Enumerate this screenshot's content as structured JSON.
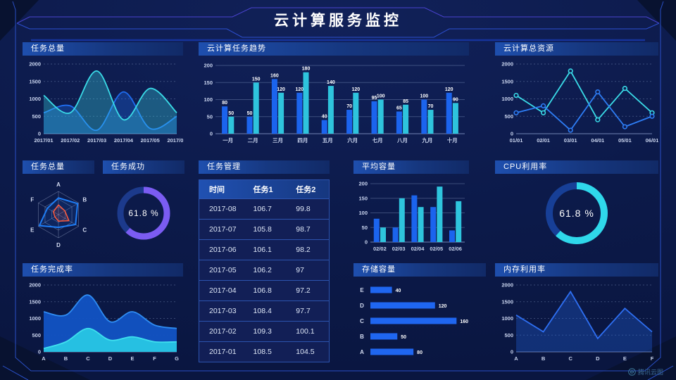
{
  "header": {
    "title": "云计算服务监控"
  },
  "footer": {
    "watermark": "腾讯云图"
  },
  "colors": {
    "background": "#0c1a4a",
    "panel_title_gradient": [
      "#1e4fae",
      "#112a67"
    ],
    "blue": "#1f66f0",
    "cyan": "#2fd3e6",
    "purple": "#7b5cf2",
    "orange": "#ff5a3c",
    "gauge_track": "#1c3a8c"
  },
  "chart_data": [
    {
      "id": "task-total-trend",
      "type": "area",
      "title": "任务总量",
      "smooth": true,
      "grid": "dashed",
      "x": [
        "2017/01",
        "2017/02",
        "2017/03",
        "2017/04",
        "2017/05",
        "2017/06"
      ],
      "ylim": [
        0,
        2000
      ],
      "yticks": [
        0,
        500,
        1000,
        1500,
        2000
      ],
      "fillOpacity": 0.32,
      "series": [
        {
          "name": "series-blue",
          "color": "#1f6df0",
          "values": [
            600,
            800,
            100,
            1200,
            150,
            500
          ]
        },
        {
          "name": "series-cyan",
          "color": "#3adce8",
          "values": [
            1100,
            600,
            1800,
            400,
            1300,
            600
          ]
        }
      ]
    },
    {
      "id": "cloud-task-trend",
      "type": "bar",
      "title": "云计算任务趋势",
      "labels": true,
      "x": [
        "一月",
        "二月",
        "三月",
        "四月",
        "五月",
        "六月",
        "七月",
        "八月",
        "九月",
        "十月"
      ],
      "ylim": [
        0,
        200
      ],
      "yticks": [
        0,
        50,
        100,
        150,
        200
      ],
      "series": [
        {
          "name": "series-blue",
          "color": "#1b64ee",
          "values": [
            80,
            50,
            160,
            120,
            40,
            70,
            95,
            65,
            100,
            120
          ]
        },
        {
          "name": "series-cyan",
          "color": "#2ec4dd",
          "values": [
            50,
            150,
            120,
            180,
            140,
            120,
            100,
            85,
            70,
            90
          ]
        }
      ]
    },
    {
      "id": "cloud-total-resources",
      "type": "line",
      "title": "云计算总资源",
      "markers": true,
      "grid": "dashed",
      "x": [
        "01/01",
        "02/01",
        "03/01",
        "04/01",
        "05/01",
        "06/01"
      ],
      "ylim": [
        0,
        2000
      ],
      "yticks": [
        0,
        500,
        1000,
        1500,
        2000
      ],
      "series": [
        {
          "name": "series-cyan",
          "color": "#3adce8",
          "values": [
            1100,
            600,
            1800,
            400,
            1300,
            600
          ]
        },
        {
          "name": "series-blue",
          "color": "#2e7df5",
          "values": [
            600,
            800,
            100,
            1200,
            200,
            500
          ]
        }
      ]
    },
    {
      "id": "task-total-radar",
      "type": "radar",
      "title": "任务总量",
      "axes": [
        "A",
        "B",
        "C",
        "D",
        "E",
        "F"
      ],
      "max": 100,
      "series": [
        {
          "name": "series-blue",
          "color": "#1f7df5",
          "values": [
            72,
            95,
            85,
            55,
            95,
            55
          ]
        },
        {
          "name": "series-orange",
          "color": "#ff5a3c",
          "values": [
            42,
            32,
            52,
            28,
            18,
            25
          ]
        }
      ]
    },
    {
      "id": "task-success-gauge",
      "type": "donut",
      "title": "任务成功",
      "value": 61.8,
      "label": "61.8 %",
      "color": "#7b5cf2",
      "track": "#1c3a8c"
    },
    {
      "id": "task-table",
      "type": "table",
      "title": "任务管理",
      "headers": [
        "时间",
        "任务1",
        "任务2"
      ],
      "rows": [
        [
          "2017-08",
          "106.7",
          "99.8"
        ],
        [
          "2017-07",
          "105.8",
          "98.7"
        ],
        [
          "2017-06",
          "106.1",
          "98.2"
        ],
        [
          "2017-05",
          "106.2",
          "97"
        ],
        [
          "2017-04",
          "106.8",
          "97.2"
        ],
        [
          "2017-03",
          "108.4",
          "97.7"
        ],
        [
          "2017-02",
          "109.3",
          "100.1"
        ],
        [
          "2017-01",
          "108.5",
          "104.5"
        ]
      ]
    },
    {
      "id": "avg-capacity",
      "type": "bar",
      "title": "平均容量",
      "labels": false,
      "x": [
        "02/02",
        "02/03",
        "02/04",
        "02/05",
        "02/06"
      ],
      "ylim": [
        0,
        200
      ],
      "yticks": [
        0,
        50,
        100,
        150,
        200
      ],
      "series": [
        {
          "name": "series-blue",
          "color": "#1b64ee",
          "values": [
            80,
            50,
            160,
            120,
            40
          ]
        },
        {
          "name": "series-cyan",
          "color": "#2ec4dd",
          "values": [
            50,
            150,
            120,
            190,
            140
          ]
        }
      ]
    },
    {
      "id": "cpu-usage-gauge",
      "type": "donut",
      "title": "CPU利用率",
      "value": 61.8,
      "label": "61.8 %",
      "color": "#2fd8ea",
      "track": "#173f97"
    },
    {
      "id": "task-completion",
      "type": "area",
      "title": "任务完成率",
      "smooth": true,
      "grid": "dashed",
      "x": [
        "A",
        "B",
        "C",
        "D",
        "E",
        "F",
        "G"
      ],
      "ylim": [
        0,
        2000
      ],
      "yticks": [
        0,
        500,
        1000,
        1500,
        2000
      ],
      "fillOpacity": 0.95,
      "series": [
        {
          "name": "series-blue",
          "color": "#2f8cf2",
          "fill": "#1253c4",
          "values": [
            1200,
            1100,
            1700,
            900,
            1200,
            800,
            700
          ]
        },
        {
          "name": "series-cyan",
          "color": "#3fe0ee",
          "fill": "#28c6e4",
          "values": [
            100,
            300,
            700,
            350,
            450,
            300,
            300
          ]
        }
      ]
    },
    {
      "id": "storage-capacity",
      "type": "hbar",
      "title": "存储容量",
      "categories": [
        "E",
        "D",
        "C",
        "B",
        "A"
      ],
      "values": [
        40,
        120,
        160,
        50,
        80
      ],
      "max": 170,
      "color": "#1f66f0"
    },
    {
      "id": "memory-usage",
      "type": "line",
      "title": "内存利用率",
      "area": true,
      "grid": "dashed",
      "x": [
        "A",
        "B",
        "C",
        "D",
        "E",
        "F"
      ],
      "ylim": [
        0,
        2000
      ],
      "yticks": [
        0,
        500,
        1000,
        1500,
        2000
      ],
      "fillOpacity": 0.35,
      "series": [
        {
          "name": "series-blue",
          "color": "#2e6ff2",
          "fill": "#1f5fd8",
          "values": [
            1100,
            600,
            1800,
            400,
            1300,
            600
          ]
        }
      ]
    }
  ]
}
